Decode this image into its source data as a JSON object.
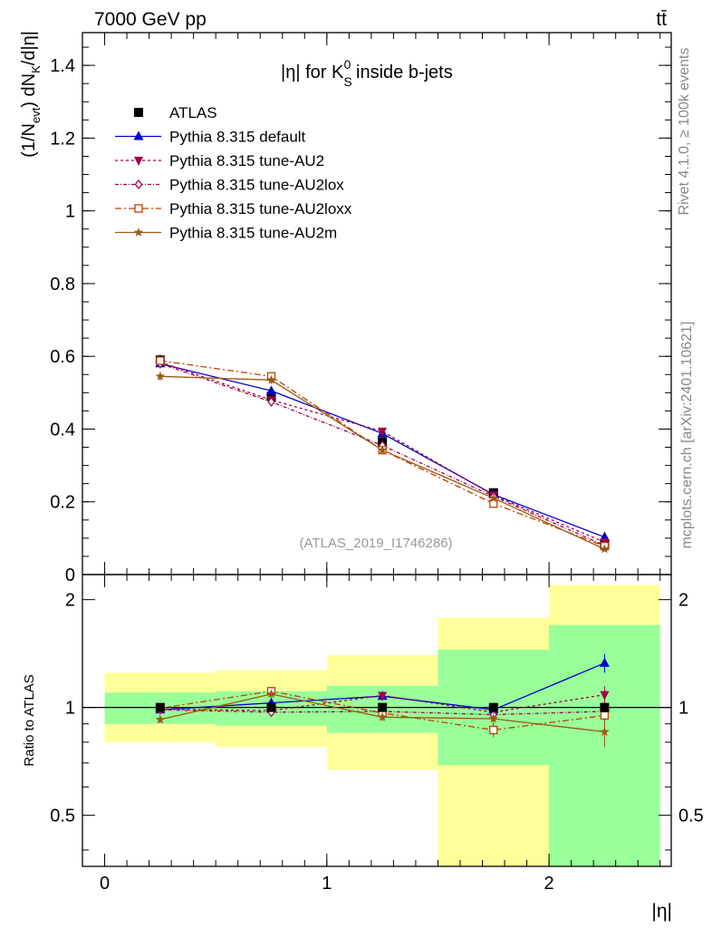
{
  "header": {
    "energy_label": "7000 GeV pp",
    "process_label": "tt̄",
    "rivet_label": "Rivet 4.1.0, ≥ 100k events",
    "site_label": "mcplots.cern.ch [arXiv:2401.10621]"
  },
  "chart_data": {
    "type": "scatter",
    "title_prefix": "|η| for K",
    "title_sup": "0",
    "title_sub": "S",
    "title_suffix": " inside b-jets",
    "analysis_label": "(ATLAS_2019_I1746286)",
    "ylabel": "(1/N_evt) dN_K/d|η|",
    "ylabel_parts": {
      "a": "(1/N",
      "a_sub": "evt",
      "b": ") dN",
      "b_sub": "K",
      "c": "/d|η|"
    },
    "xlabel": "|η|",
    "xlim": [
      -0.1,
      2.55
    ],
    "ylim": [
      0,
      1.49
    ],
    "x_ticks": [
      0,
      1,
      2
    ],
    "y_ticks": [
      0,
      0.2,
      0.4,
      0.6,
      0.8,
      1,
      1.2,
      1.4
    ],
    "y_tick_labels": [
      "0",
      "0.2",
      "0.4",
      "0.6",
      "0.8",
      "1",
      "1.2",
      "1.4"
    ],
    "x": [
      0.25,
      0.75,
      1.25,
      1.75,
      2.25
    ],
    "bin_edges": [
      0,
      0.5,
      1,
      1.5,
      2,
      2.5
    ],
    "series": [
      {
        "name": "ATLAS",
        "marker": "square-filled",
        "color": "#000000",
        "dash": "",
        "line": false,
        "values": [
          0.59,
          0.49,
          0.365,
          0.225,
          0.082
        ],
        "errors": [
          0.015,
          0.012,
          0.01,
          0.008,
          0.005
        ]
      },
      {
        "name": "Pythia 8.315 default",
        "marker": "triangle-up",
        "color": "#0000cc",
        "dash": "",
        "line": true,
        "values": [
          0.58,
          0.505,
          0.388,
          0.22,
          0.103
        ],
        "errors": [
          0.012,
          0.01,
          0.008,
          0.006,
          0.004
        ]
      },
      {
        "name": "Pythia 8.315 tune-AU2",
        "marker": "triangle-down",
        "color": "#a0004b",
        "dash": "3,3",
        "line": true,
        "values": [
          0.584,
          0.48,
          0.394,
          0.218,
          0.089
        ],
        "errors": [
          0.012,
          0.01,
          0.008,
          0.006,
          0.004
        ]
      },
      {
        "name": "Pythia 8.315 tune-AU2lox",
        "marker": "diamond-open",
        "color": "#a0004b",
        "dash": "4,2,1,2",
        "line": true,
        "values": [
          0.58,
          0.475,
          0.355,
          0.215,
          0.08
        ],
        "errors": [
          0.012,
          0.01,
          0.008,
          0.006,
          0.004
        ]
      },
      {
        "name": "Pythia 8.315 tune-AU2loxx",
        "marker": "square-open",
        "color": "#c04000",
        "dash": "7,3,2,3",
        "line": true,
        "values": [
          0.588,
          0.545,
          0.342,
          0.195,
          0.078
        ],
        "errors": [
          0.012,
          0.012,
          0.008,
          0.006,
          0.004
        ]
      },
      {
        "name": "Pythia 8.315 tune-AU2m",
        "marker": "star",
        "color": "#9a5a10",
        "dash": "",
        "line": true,
        "values": [
          0.545,
          0.535,
          0.342,
          0.21,
          0.07
        ],
        "errors": [
          0.012,
          0.011,
          0.008,
          0.006,
          0.004
        ]
      }
    ],
    "ratio": {
      "ylabel": "Ratio to ATLAS",
      "ylim": [
        0.36,
        2.35
      ],
      "y_ticks": [
        0.5,
        1,
        2
      ],
      "y_tick_labels": [
        "0.5",
        "1",
        "2"
      ],
      "band_inner": [
        [
          0.9,
          1.1
        ],
        [
          0.89,
          1.11
        ],
        [
          0.85,
          1.15
        ],
        [
          0.69,
          1.45
        ],
        [
          0.36,
          1.7
        ]
      ],
      "band_outer": [
        [
          0.8,
          1.25
        ],
        [
          0.775,
          1.27
        ],
        [
          0.67,
          1.4
        ],
        [
          0.36,
          1.78
        ],
        [
          0.36,
          2.2
        ]
      ],
      "series": [
        {
          "name": "Pythia 8.315 default",
          "values": [
            0.985,
            1.03,
            1.075,
            0.985,
            1.33
          ],
          "errors": [
            0.02,
            0.02,
            0.025,
            0.04,
            0.08
          ]
        },
        {
          "name": "Pythia 8.315 tune-AU2",
          "values": [
            0.99,
            0.98,
            1.08,
            0.97,
            1.085
          ],
          "errors": [
            0.02,
            0.02,
            0.025,
            0.04,
            0.06
          ]
        },
        {
          "name": "Pythia 8.315 tune-AU2lox",
          "values": [
            0.985,
            0.97,
            0.975,
            0.955,
            0.975
          ],
          "errors": [
            0.02,
            0.02,
            0.025,
            0.04,
            0.06
          ]
        },
        {
          "name": "Pythia 8.315 tune-AU2loxx",
          "values": [
            0.995,
            1.11,
            0.965,
            0.865,
            0.95
          ],
          "errors": [
            0.02,
            0.025,
            0.025,
            0.04,
            0.06
          ]
        },
        {
          "name": "Pythia 8.315 tune-AU2m",
          "values": [
            0.925,
            1.09,
            0.94,
            0.93,
            0.855
          ],
          "errors": [
            0.02,
            0.025,
            0.025,
            0.04,
            0.08
          ]
        }
      ]
    },
    "band_colors": {
      "inner": "#99ff99",
      "outer": "#ffff99"
    }
  }
}
